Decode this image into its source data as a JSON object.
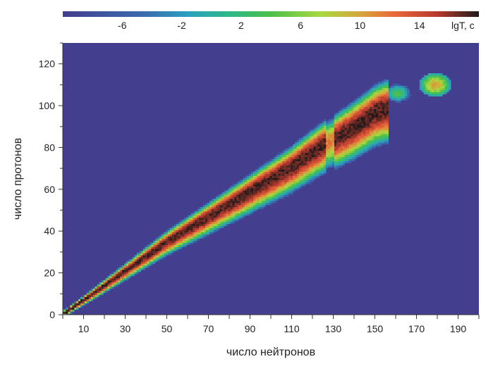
{
  "chart_data": {
    "type": "heatmap",
    "title": "",
    "xlabel": "число нейтронов",
    "ylabel": "число протонов",
    "xlim": [
      0,
      200
    ],
    "ylim": [
      0,
      130
    ],
    "x_ticks": [
      10,
      30,
      50,
      70,
      90,
      110,
      130,
      150,
      170,
      190
    ],
    "y_ticks": [
      0,
      20,
      40,
      60,
      80,
      100,
      120
    ],
    "colorbar": {
      "label": "lgT, c",
      "range": [
        -10,
        18
      ],
      "ticks": [
        -6,
        -2,
        2,
        6,
        10,
        14
      ],
      "placement": "top"
    },
    "background_value": -10,
    "background_color": "#433e8e",
    "colors": {
      "low": "#433e8e",
      "mid_blue": "#2ba0c0",
      "green": "#4cbf4a",
      "lime": "#a9d940",
      "orange": "#e8673a",
      "high": "#1e1a1a"
    },
    "band_profile": {
      "neutrons": [
        1,
        10,
        20,
        30,
        40,
        50,
        60,
        70,
        80,
        90,
        100,
        110,
        120,
        126,
        130,
        140,
        150,
        155
      ],
      "stable_protons": [
        1,
        7,
        14,
        21,
        28,
        35,
        41,
        47,
        53,
        59,
        65,
        71,
        78,
        82,
        84,
        90,
        97,
        99
      ]
    },
    "islands": [
      {
        "center_neutrons": 161,
        "center_protons": 106,
        "peak_lgT": 4
      },
      {
        "center_neutrons": 179,
        "center_protons": 110,
        "peak_lgT": 10
      }
    ],
    "grid": false
  }
}
